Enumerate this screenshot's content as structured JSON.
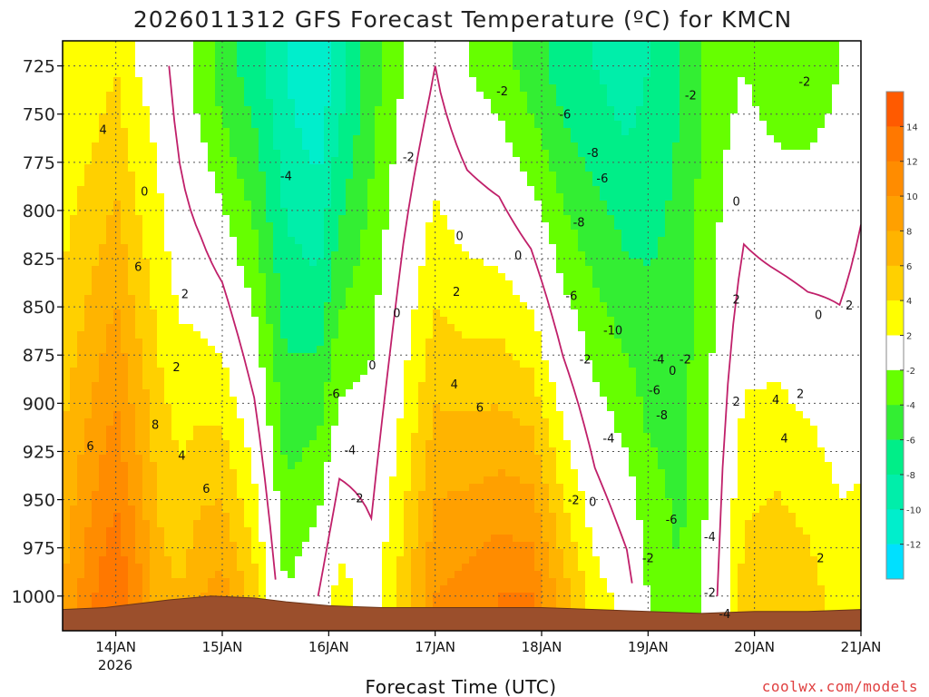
{
  "chart_data": {
    "type": "heatmap",
    "title": "2026011312 GFS Forecast Temperature (ºC) for KMCN",
    "xlabel": "Forecast Time (UTC)",
    "ylabel": "",
    "x_ticks": [
      "14JAN",
      "15JAN",
      "16JAN",
      "17JAN",
      "18JAN",
      "19JAN",
      "20JAN",
      "21JAN"
    ],
    "x_year_label": "2026",
    "x_range_days": [
      13.5,
      21.0
    ],
    "y_ticks": [
      725,
      750,
      775,
      800,
      825,
      850,
      875,
      900,
      925,
      950,
      975,
      1000
    ],
    "y_range_hpa": [
      712,
      1018
    ],
    "surface_pressure_hpa": [
      {
        "day": 13.5,
        "p": 1007
      },
      {
        "day": 13.9,
        "p": 1006
      },
      {
        "day": 14.2,
        "p": 1004
      },
      {
        "day": 14.5,
        "p": 1002
      },
      {
        "day": 14.9,
        "p": 1000
      },
      {
        "day": 15.3,
        "p": 1001
      },
      {
        "day": 15.6,
        "p": 1003
      },
      {
        "day": 16.0,
        "p": 1005
      },
      {
        "day": 16.5,
        "p": 1006
      },
      {
        "day": 17.0,
        "p": 1006
      },
      {
        "day": 17.5,
        "p": 1006
      },
      {
        "day": 18.0,
        "p": 1006
      },
      {
        "day": 18.5,
        "p": 1007
      },
      {
        "day": 19.0,
        "p": 1008
      },
      {
        "day": 19.5,
        "p": 1009
      },
      {
        "day": 20.0,
        "p": 1008
      },
      {
        "day": 20.5,
        "p": 1008
      },
      {
        "day": 21.0,
        "p": 1007
      }
    ],
    "colorbar": {
      "labels": [
        "14",
        "12",
        "10",
        "8",
        "6",
        "4",
        "2",
        "-2",
        "-4",
        "-6",
        "-8",
        "-10",
        "-12"
      ],
      "bands": [
        {
          "min": 14,
          "max": 16,
          "color": "#ff5a00"
        },
        {
          "min": 12,
          "max": 14,
          "color": "#ff7800"
        },
        {
          "min": 10,
          "max": 12,
          "color": "#ff8c00"
        },
        {
          "min": 8,
          "max": 10,
          "color": "#ffa000"
        },
        {
          "min": 6,
          "max": 8,
          "color": "#ffb400"
        },
        {
          "min": 4,
          "max": 6,
          "color": "#ffd000"
        },
        {
          "min": 2,
          "max": 4,
          "color": "#ffff00"
        },
        {
          "min": -2,
          "max": 2,
          "color": "#ffffff"
        },
        {
          "min": -4,
          "max": -2,
          "color": "#66ff00"
        },
        {
          "min": -6,
          "max": -4,
          "color": "#33ee33"
        },
        {
          "min": -8,
          "max": -6,
          "color": "#00ee88"
        },
        {
          "min": -10,
          "max": -8,
          "color": "#00eeaa"
        },
        {
          "min": -12,
          "max": -10,
          "color": "#00eecc"
        },
        {
          "min": -14,
          "max": -12,
          "color": "#00e0ff"
        }
      ]
    },
    "temperature_field": {
      "columns": [
        {
          "day": 13.5,
          "t725": 2,
          "t1000": 8
        },
        {
          "day": 13.8,
          "t725": 3,
          "t1000": 12
        },
        {
          "day": 14.0,
          "t725": 4,
          "t1000": 14
        },
        {
          "day": 14.2,
          "t725": 2,
          "t1000": 11
        },
        {
          "day": 14.4,
          "t725": 1,
          "t1000": 7
        },
        {
          "day": 14.6,
          "t725": -1,
          "t1000": 6
        },
        {
          "day": 14.8,
          "t725": -3,
          "t1000": 8
        },
        {
          "day": 15.0,
          "t725": -5,
          "t1000": 9
        },
        {
          "day": 15.3,
          "t725": -7,
          "t1000": 5
        },
        {
          "day": 15.6,
          "t725": -10,
          "t1000": -2
        },
        {
          "day": 15.9,
          "t725": -12,
          "t1000": 0
        },
        {
          "day": 16.1,
          "t725": -9,
          "t1000": 3
        },
        {
          "day": 16.4,
          "t725": -5,
          "t1000": 1
        },
        {
          "day": 16.7,
          "t725": -2,
          "t1000": 5
        },
        {
          "day": 17.0,
          "t725": 0,
          "t1000": 10
        },
        {
          "day": 17.3,
          "t725": -2,
          "t1000": 11
        },
        {
          "day": 17.6,
          "t725": -3,
          "t1000": 12
        },
        {
          "day": 17.9,
          "t725": -5,
          "t1000": 12
        },
        {
          "day": 18.2,
          "t725": -7,
          "t1000": 7
        },
        {
          "day": 18.5,
          "t725": -8,
          "t1000": 3
        },
        {
          "day": 18.8,
          "t725": -9,
          "t1000": 1
        },
        {
          "day": 19.0,
          "t725": -8,
          "t1000": -2
        },
        {
          "day": 19.3,
          "t725": -6,
          "t1000": -4
        },
        {
          "day": 19.6,
          "t725": -3,
          "t1000": -1
        },
        {
          "day": 19.9,
          "t725": -2,
          "t1000": 5
        },
        {
          "day": 20.2,
          "t725": -3,
          "t1000": 6
        },
        {
          "day": 20.5,
          "t725": -3,
          "t1000": 5
        },
        {
          "day": 20.8,
          "t725": -2,
          "t1000": 3
        },
        {
          "day": 21.0,
          "t725": -1,
          "t1000": 3
        }
      ]
    },
    "contour_labels": [
      {
        "day": 13.88,
        "p": 758,
        "text": "4"
      },
      {
        "day": 14.27,
        "p": 790,
        "text": "0"
      },
      {
        "day": 14.21,
        "p": 829,
        "text": "6"
      },
      {
        "day": 14.65,
        "p": 843,
        "text": "2"
      },
      {
        "day": 14.57,
        "p": 881,
        "text": "2"
      },
      {
        "day": 14.37,
        "p": 911,
        "text": "8"
      },
      {
        "day": 14.62,
        "p": 927,
        "text": "4"
      },
      {
        "day": 13.76,
        "p": 922,
        "text": "6"
      },
      {
        "day": 14.85,
        "p": 944,
        "text": "6"
      },
      {
        "day": 15.6,
        "p": 782,
        "text": "-4"
      },
      {
        "day": 16.05,
        "p": 895,
        "text": "-6"
      },
      {
        "day": 16.2,
        "p": 924,
        "text": "-4"
      },
      {
        "day": 16.27,
        "p": 949,
        "text": "-2"
      },
      {
        "day": 16.64,
        "p": 853,
        "text": "0"
      },
      {
        "day": 16.41,
        "p": 880,
        "text": "0"
      },
      {
        "day": 16.75,
        "p": 772,
        "text": "-2"
      },
      {
        "day": 17.23,
        "p": 813,
        "text": "0"
      },
      {
        "day": 17.78,
        "p": 823,
        "text": "0"
      },
      {
        "day": 17.2,
        "p": 842,
        "text": "2"
      },
      {
        "day": 17.18,
        "p": 890,
        "text": "4"
      },
      {
        "day": 17.42,
        "p": 902,
        "text": "6"
      },
      {
        "day": 17.63,
        "p": 738,
        "text": "-2"
      },
      {
        "day": 18.22,
        "p": 750,
        "text": "-6"
      },
      {
        "day": 18.48,
        "p": 770,
        "text": "-8"
      },
      {
        "day": 18.57,
        "p": 783,
        "text": "-6"
      },
      {
        "day": 18.35,
        "p": 806,
        "text": "-8"
      },
      {
        "day": 18.28,
        "p": 844,
        "text": "-6"
      },
      {
        "day": 18.67,
        "p": 862,
        "text": "-10"
      },
      {
        "day": 19.1,
        "p": 877,
        "text": "-4"
      },
      {
        "day": 19.35,
        "p": 877,
        "text": "-2"
      },
      {
        "day": 19.06,
        "p": 893,
        "text": "-6"
      },
      {
        "day": 19.13,
        "p": 906,
        "text": "-8"
      },
      {
        "day": 19.23,
        "p": 883,
        "text": "0"
      },
      {
        "day": 18.41,
        "p": 877,
        "text": "-2"
      },
      {
        "day": 18.63,
        "p": 918,
        "text": "-4"
      },
      {
        "day": 18.3,
        "p": 950,
        "text": "-2"
      },
      {
        "day": 18.48,
        "p": 951,
        "text": "0"
      },
      {
        "day": 19.22,
        "p": 960,
        "text": "-6"
      },
      {
        "day": 19.58,
        "p": 969,
        "text": "-4"
      },
      {
        "day": 19.0,
        "p": 980,
        "text": "-2"
      },
      {
        "day": 19.58,
        "p": 998,
        "text": "-2"
      },
      {
        "day": 19.72,
        "p": 1009,
        "text": "-4"
      },
      {
        "day": 19.4,
        "p": 740,
        "text": "-2"
      },
      {
        "day": 19.83,
        "p": 795,
        "text": "0"
      },
      {
        "day": 19.83,
        "p": 846,
        "text": "2"
      },
      {
        "day": 19.83,
        "p": 899,
        "text": "2"
      },
      {
        "day": 20.2,
        "p": 898,
        "text": "4"
      },
      {
        "day": 20.28,
        "p": 918,
        "text": "4"
      },
      {
        "day": 20.43,
        "p": 895,
        "text": "2"
      },
      {
        "day": 20.47,
        "p": 733,
        "text": "-2"
      },
      {
        "day": 20.6,
        "p": 854,
        "text": "0"
      },
      {
        "day": 20.89,
        "p": 849,
        "text": "2"
      },
      {
        "day": 20.62,
        "p": 980,
        "text": "2"
      }
    ]
  },
  "credit": "coolwx.com/models"
}
